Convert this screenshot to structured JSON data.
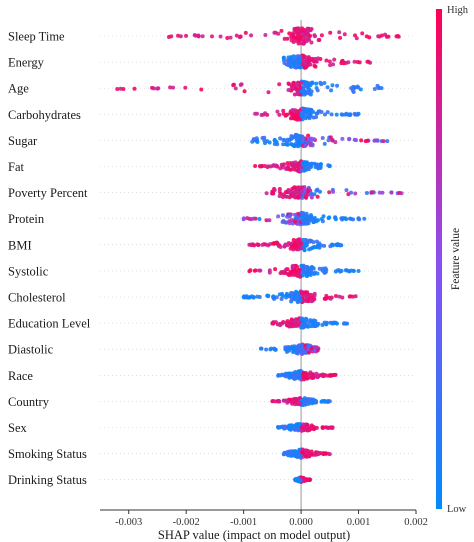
{
  "chart_data": {
    "type": "scatter",
    "subtype": "shap-beeswarm-summary",
    "xlabel": "SHAP value (impact on model output)",
    "ylabel": "",
    "xlim": [
      -0.0035,
      0.002
    ],
    "x_ticks": [
      -0.003,
      -0.002,
      -0.001,
      0.0,
      0.001,
      0.002
    ],
    "x_tick_labels": [
      "-0.003",
      "-0.002",
      "-0.001",
      "0.000",
      "0.001",
      "0.002"
    ],
    "colorbar": {
      "title": "Feature value",
      "high_label": "High",
      "low_label": "Low",
      "high_color": "#ff0052",
      "low_color": "#008bfb"
    },
    "features": [
      {
        "name": "Sleep Time",
        "min": -0.0023,
        "max": 0.0017,
        "neg_value": "high",
        "pos_value": "high",
        "spread": 1.0
      },
      {
        "name": "Energy",
        "min": -0.0003,
        "max": 0.0012,
        "neg_value": "low",
        "pos_value": "high",
        "spread": 0.85
      },
      {
        "name": "Age",
        "min": -0.0032,
        "max": 0.0014,
        "neg_value": "high",
        "pos_value": "low",
        "spread": 0.85
      },
      {
        "name": "Carbohydrates",
        "min": -0.0008,
        "max": 0.001,
        "neg_value": "high",
        "pos_value": "low",
        "spread": 0.75
      },
      {
        "name": "Sugar",
        "min": -0.00085,
        "max": 0.0015,
        "neg_value": "low",
        "pos_value": "mixed",
        "spread": 0.8
      },
      {
        "name": "Fat",
        "min": -0.0008,
        "max": 0.0005,
        "neg_value": "high",
        "pos_value": "low",
        "spread": 0.7
      },
      {
        "name": "Poverty Percent",
        "min": -0.0006,
        "max": 0.00175,
        "neg_value": "high",
        "pos_value": "mixed",
        "spread": 0.75
      },
      {
        "name": "Protein",
        "min": -0.001,
        "max": 0.0011,
        "neg_value": "mixed",
        "pos_value": "low",
        "spread": 0.75
      },
      {
        "name": "BMI",
        "min": -0.0009,
        "max": 0.0007,
        "neg_value": "high",
        "pos_value": "low",
        "spread": 0.75
      },
      {
        "name": "Systolic",
        "min": -0.0009,
        "max": 0.001,
        "neg_value": "high",
        "pos_value": "low",
        "spread": 0.75
      },
      {
        "name": "Cholesterol",
        "min": -0.001,
        "max": 0.00095,
        "neg_value": "low",
        "pos_value": "high",
        "spread": 0.75
      },
      {
        "name": "Education Level",
        "min": -0.0005,
        "max": 0.0008,
        "neg_value": "high",
        "pos_value": "low",
        "spread": 0.65
      },
      {
        "name": "Diastolic",
        "min": -0.0007,
        "max": 0.0003,
        "neg_value": "low",
        "pos_value": "mixed",
        "spread": 0.65
      },
      {
        "name": "Race",
        "min": -0.0004,
        "max": 0.0006,
        "neg_value": "low",
        "pos_value": "high",
        "spread": 0.6
      },
      {
        "name": "Country",
        "min": -0.0005,
        "max": 0.0005,
        "neg_value": "high",
        "pos_value": "low",
        "spread": 0.5
      },
      {
        "name": "Sex",
        "min": -0.0004,
        "max": 0.00055,
        "neg_value": "low",
        "pos_value": "high",
        "spread": 0.5
      },
      {
        "name": "Smoking Status",
        "min": -0.0003,
        "max": 0.0005,
        "neg_value": "low",
        "pos_value": "high",
        "spread": 0.55
      },
      {
        "name": "Drinking Status",
        "min": -0.0001,
        "max": 0.00015,
        "neg_value": "low",
        "pos_value": "high",
        "spread": 0.35
      }
    ]
  }
}
